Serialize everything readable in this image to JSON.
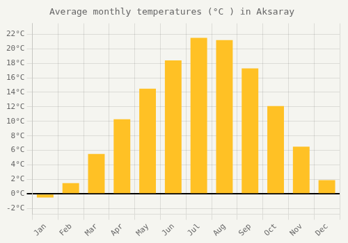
{
  "chart_data": {
    "type": "bar",
    "title": "Average monthly temperatures (°C ) in Aksaray",
    "categories": [
      "Jan",
      "Feb",
      "Mar",
      "Apr",
      "May",
      "Jun",
      "Jul",
      "Aug",
      "Sep",
      "Oct",
      "Nov",
      "Dec"
    ],
    "values": [
      -0.5,
      1.5,
      5.5,
      10.3,
      14.5,
      18.4,
      21.5,
      21.2,
      17.3,
      12.1,
      6.5,
      1.9
    ],
    "color": "#FFC125",
    "ylim": [
      -2.8,
      23.5
    ],
    "yticks": [
      {
        "value": -2,
        "label": "-2°C"
      },
      {
        "value": 0,
        "label": "0°C"
      },
      {
        "value": 2,
        "label": "2°C"
      },
      {
        "value": 4,
        "label": "4°C"
      },
      {
        "value": 6,
        "label": "6°C"
      },
      {
        "value": 8,
        "label": "8°C"
      },
      {
        "value": 10,
        "label": "10°C"
      },
      {
        "value": 12,
        "label": "12°C"
      },
      {
        "value": 14,
        "label": "14°C"
      },
      {
        "value": 16,
        "label": "16°C"
      },
      {
        "value": 18,
        "label": "18°C"
      },
      {
        "value": 20,
        "label": "20°C"
      },
      {
        "value": 22,
        "label": "22°C"
      }
    ],
    "grid": true
  }
}
